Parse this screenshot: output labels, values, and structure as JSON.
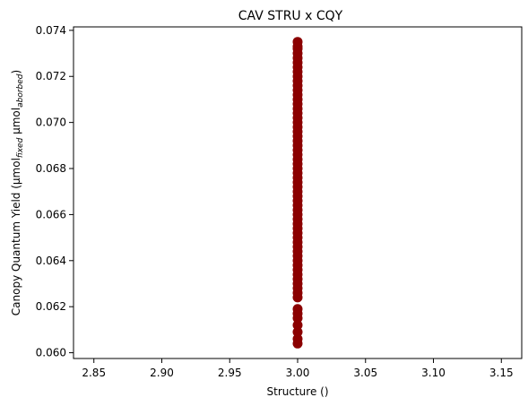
{
  "chart_data": {
    "type": "scatter",
    "title": "CAV STRU x CQY",
    "xlabel": "Structure ()",
    "ylabel": {
      "prefix": "Canopy Quantum Yield (µmol",
      "sub1": "fixed",
      "middle": " µmol",
      "sub2": "aborbed",
      "suffix": ")"
    },
    "xlim": [
      2.835,
      3.165
    ],
    "ylim": [
      0.05975,
      0.07415
    ],
    "xticks": [
      "2.85",
      "2.90",
      "2.95",
      "3.00",
      "3.05",
      "3.10",
      "3.15"
    ],
    "yticks": [
      "0.060",
      "0.062",
      "0.064",
      "0.066",
      "0.068",
      "0.070",
      "0.072",
      "0.074"
    ],
    "grid": false,
    "marker_color": "#8b0000",
    "x_value": 3.0,
    "points_y": [
      0.0604,
      0.0606,
      0.0609,
      0.0612,
      0.0615,
      0.0617,
      0.0619,
      0.0624,
      0.0626,
      0.0628,
      0.063,
      0.0632,
      0.0634,
      0.0636,
      0.0638,
      0.064,
      0.0642,
      0.0644,
      0.0646,
      0.0648,
      0.065,
      0.0652,
      0.0654,
      0.0656,
      0.0658,
      0.066,
      0.0662,
      0.0664,
      0.0666,
      0.0668,
      0.067,
      0.0672,
      0.0674,
      0.0676,
      0.0678,
      0.068,
      0.0682,
      0.0684,
      0.0686,
      0.0688,
      0.069,
      0.0692,
      0.0694,
      0.0696,
      0.0698,
      0.07,
      0.0702,
      0.0704,
      0.0706,
      0.0708,
      0.071,
      0.0712,
      0.0714,
      0.0716,
      0.0718,
      0.072,
      0.0722,
      0.0724,
      0.0726,
      0.0728,
      0.073,
      0.0732,
      0.0733,
      0.0735
    ]
  }
}
